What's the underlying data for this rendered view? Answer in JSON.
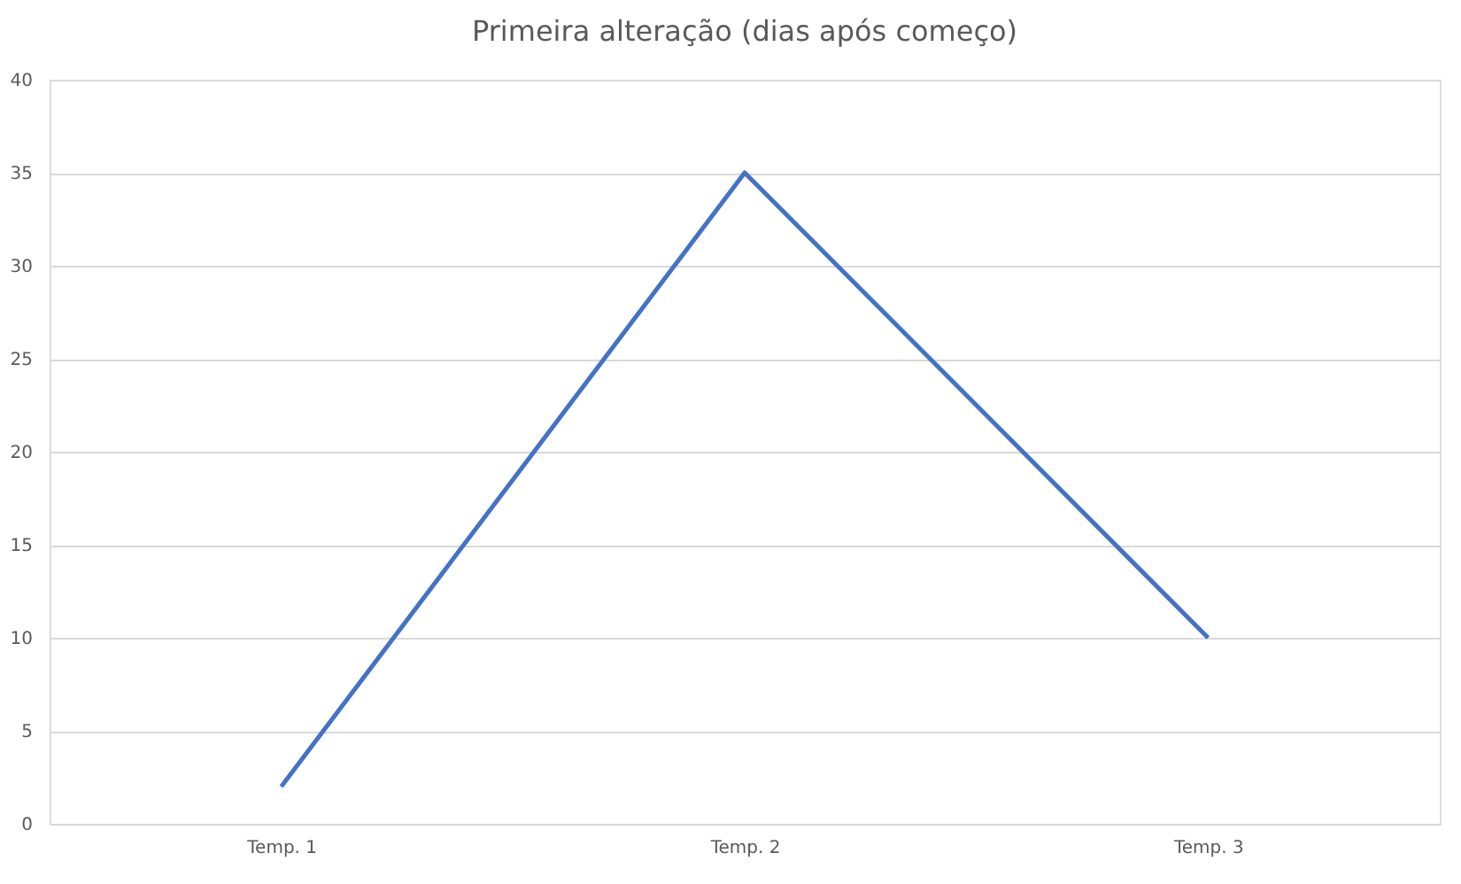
{
  "chart_data": {
    "type": "line",
    "title": "Primeira alteração (dias após começo)",
    "categories": [
      "Temp. 1",
      "Temp. 2",
      "Temp. 3"
    ],
    "series": [
      {
        "color": "#4472c4",
        "values": [
          2,
          35,
          10
        ]
      }
    ],
    "ylim": [
      0,
      40
    ],
    "yticks": [
      0,
      5,
      10,
      15,
      20,
      25,
      30,
      35,
      40
    ],
    "grid": "y",
    "marker": "none",
    "line_style": "solid"
  }
}
